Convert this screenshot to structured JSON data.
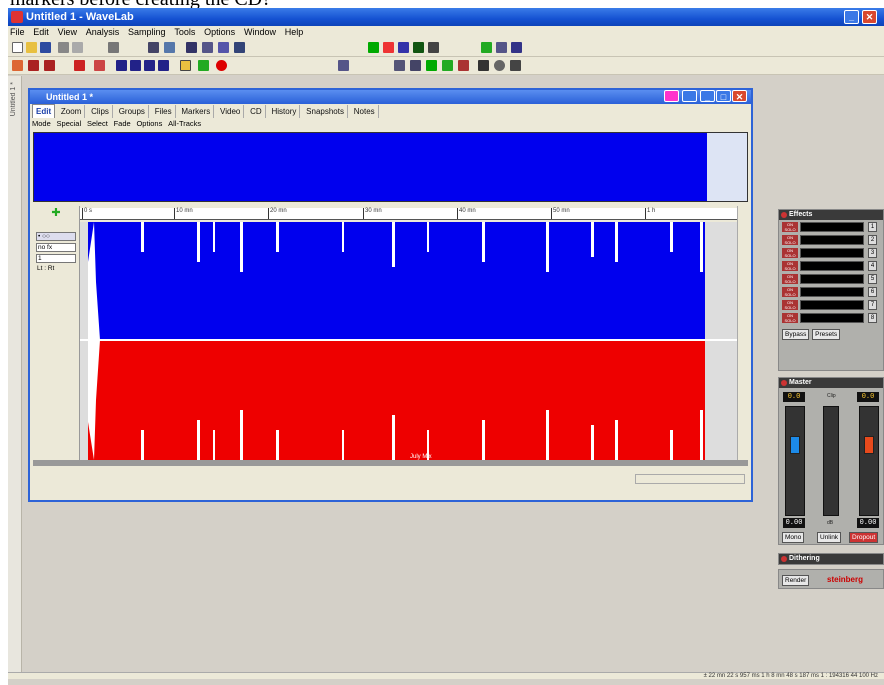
{
  "page_header": "markers before creating the CD?",
  "window": {
    "title": "Untitled 1 - WaveLab"
  },
  "menu": [
    "File",
    "Edit",
    "View",
    "Analysis",
    "Sampling",
    "Tools",
    "Options",
    "Window",
    "Help"
  ],
  "side_tab": "Untitled 1 *",
  "document": {
    "title": "Untitled 1 *",
    "tabs": [
      "Edit",
      "Zoom",
      "Clips",
      "Groups",
      "Files",
      "Markers",
      "Video",
      "CD",
      "History",
      "Snapshots",
      "Notes"
    ],
    "subtabs": [
      "Mode",
      "Special",
      "Select",
      "Fade",
      "Options",
      "All-Tracks"
    ],
    "ruler_labels": [
      "0 s",
      "10 mn",
      "20 mn",
      "30 mn",
      "40 mn",
      "50 mn",
      "1 h"
    ],
    "left_tools": [
      "no fx",
      "1",
      "Lt : Rt"
    ],
    "clip_name": "July Mix"
  },
  "effects_panel": {
    "title": "Effects",
    "slot_numbers": [
      "1",
      "2",
      "3",
      "4",
      "5",
      "6",
      "7",
      "8"
    ],
    "buttons": [
      "Bypass",
      "Presets"
    ]
  },
  "master_panel": {
    "title": "Master",
    "left_value": "0.0",
    "right_value": "0.0",
    "bottom_left": "0.00",
    "bottom_right": "0.00",
    "clip_label": "Clip",
    "db_label": "dB",
    "buttons": [
      "Mono",
      "Unlink",
      "Dropout"
    ]
  },
  "dithering_panel": {
    "title": "Dithering"
  },
  "render_button": "Render",
  "brand": "steinberg",
  "statusbar": "± 22 mn 22 s 957 ms   1 h 8 mn 48 s 187 ms   1 : 194316   44 100 Hz"
}
